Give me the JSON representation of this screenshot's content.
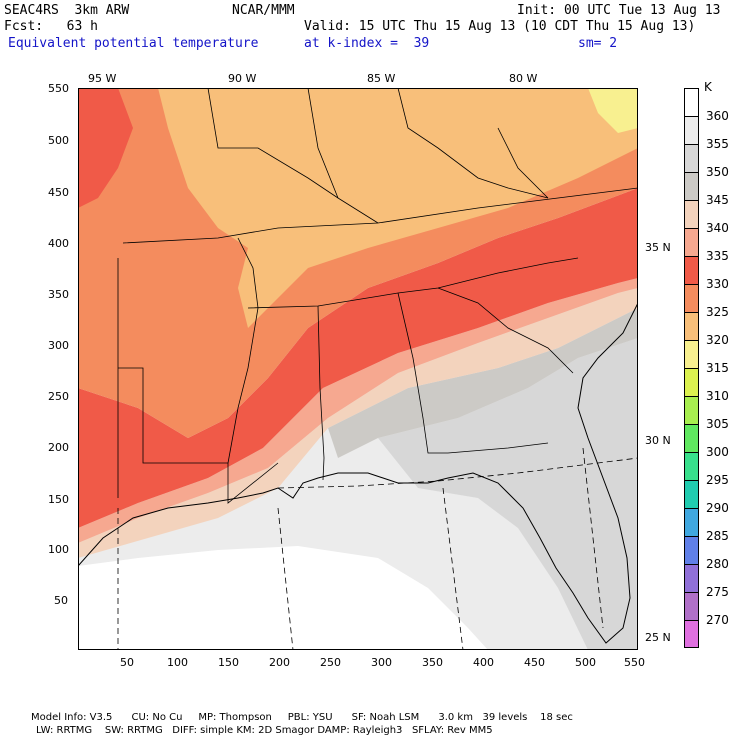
{
  "header": {
    "model": "SEAC4RS  3km ARW",
    "org": "NCAR/MMM",
    "init": "Init: 00 UTC Tue 13 Aug 13",
    "fcst": "Fcst:   63 h",
    "valid": "Valid: 15 UTC Thu 15 Aug 13 (10 CDT Thu 15 Aug 13)",
    "field": "Equivalent potential temperature",
    "level": "at k-index =  39",
    "smooth": "sm= 2"
  },
  "map_ticks": {
    "top": [
      "95 W",
      "90 W",
      "85 W",
      "80 W"
    ],
    "right": [
      "35 N",
      "30 N",
      "25 N"
    ],
    "left": [
      "550",
      "500",
      "450",
      "400",
      "350",
      "300",
      "250",
      "200",
      "150",
      "100",
      "50"
    ],
    "bottom": [
      "50",
      "100",
      "150",
      "200",
      "250",
      "300",
      "350",
      "400",
      "450",
      "500",
      "550"
    ]
  },
  "legend": {
    "unit": "K",
    "levels": [
      {
        "label": "360",
        "color": "#ffffff"
      },
      {
        "label": "355",
        "color": "#ececec"
      },
      {
        "label": "350",
        "color": "#d7d7d7"
      },
      {
        "label": "345",
        "color": "#cccac6"
      },
      {
        "label": "340",
        "color": "#f3d3bd"
      },
      {
        "label": "335",
        "color": "#f6a890"
      },
      {
        "label": "330",
        "color": "#f05a48"
      },
      {
        "label": "325",
        "color": "#f48c5e"
      },
      {
        "label": "320",
        "color": "#f8bf7a"
      },
      {
        "label": "315",
        "color": "#f8f090"
      },
      {
        "label": "310",
        "color": "#dcf250"
      },
      {
        "label": "305",
        "color": "#a8ef50"
      },
      {
        "label": "300",
        "color": "#60e860"
      },
      {
        "label": "295",
        "color": "#38e08c"
      },
      {
        "label": "290",
        "color": "#20ccb0"
      },
      {
        "label": "285",
        "color": "#40a8e0"
      },
      {
        "label": "280",
        "color": "#6080e8"
      },
      {
        "label": "275",
        "color": "#9070d8"
      },
      {
        "label": "270",
        "color": "#b070c8"
      },
      {
        "label": "",
        "color": "#e070e0"
      }
    ]
  },
  "footer": {
    "line1": "Model Info: V3.5      CU: No Cu     MP: Thompson     PBL: YSU      SF: Noah LSM      3.0 km   39 levels    18 sec",
    "line2": "LW: RRTMG    SW: RRTMG   DIFF: simple KM: 2D Smagor DAMP: Rayleigh3   SFLAY: Rev MM5"
  }
}
